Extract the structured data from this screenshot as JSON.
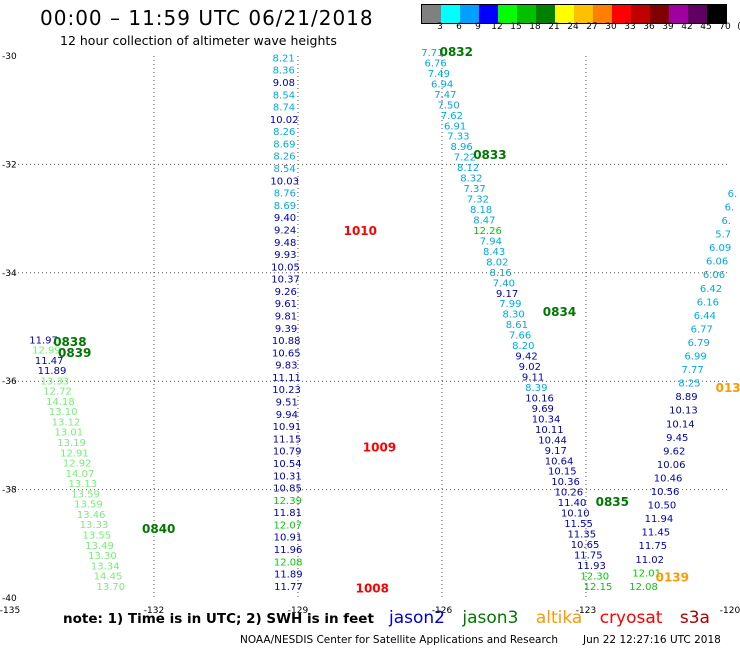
{
  "title": "00:00 – 11:59 UTC 06/21/2018",
  "subtitle": "12 hour collection of altimeter wave heights",
  "color_scale": {
    "labels": [
      "3",
      "6",
      "9",
      "12",
      "15",
      "18",
      "21",
      "24",
      "27",
      "30",
      "33",
      "36",
      "39",
      "42",
      "45",
      "70",
      "(ft)"
    ],
    "colors": [
      "#808080",
      "#00ffff",
      "#00a0ff",
      "#0000ff",
      "#00ff00",
      "#00c000",
      "#008000",
      "#ffff00",
      "#ffc000",
      "#ff8000",
      "#ff0000",
      "#c00000",
      "#800000",
      "#a000a0",
      "#600060",
      "#000000"
    ]
  },
  "map": {
    "lon_labels": [
      "-135",
      "-132",
      "-129",
      "-126",
      "-123",
      "-120"
    ],
    "lat_labels": [
      "-30",
      "-32",
      "-34",
      "-36",
      "-38",
      "-40"
    ],
    "lon_range": [
      -135,
      -120
    ],
    "lat_range": [
      -40,
      -30
    ]
  },
  "satellite_colors": {
    "j2": "#0000cc",
    "j3": "#007700",
    "altika": "#ff9900",
    "cryosat": "#ff0000",
    "s3a": "#aa0000"
  },
  "height_colors": {
    "c1": "#00aadd",
    "c2": "#0000aa",
    "c3": "#00cc00",
    "c4": "#77ee77"
  },
  "tracks": [
    {
      "name": "track-a",
      "lon_start": -129.3,
      "lat_start": -30.1,
      "lon_end": -129.2,
      "lat_end": -39.85,
      "values": [
        "8.21",
        "8.36",
        "9.08",
        "8.54",
        "8.74",
        "10.02",
        "8.26",
        "8.69",
        "8.26",
        "8.54",
        "10.03",
        "8.76",
        "8.69",
        "9.40",
        "9.24",
        "9.48",
        "9.93",
        "10.05",
        "10.37",
        "9.26",
        "9.61",
        "9.81",
        "9.39",
        "10.88",
        "10.65",
        "9.83",
        "11.11",
        "10.23",
        "9.51",
        "9.94",
        "10.91",
        "11.15",
        "10.79",
        "10.54",
        "10.31",
        "10.85",
        "12.39",
        "11.81",
        "12.07",
        "10.91",
        "11.96",
        "12.08",
        "11.89",
        "11.77"
      ],
      "colors": [
        "c1",
        "c1",
        "c2",
        "c1",
        "c1",
        "c2",
        "c1",
        "c1",
        "c1",
        "c1",
        "c2",
        "c1",
        "c1",
        "c2",
        "c2",
        "c2",
        "c2",
        "c2",
        "c2",
        "c2",
        "c2",
        "c2",
        "c2",
        "c2",
        "c2",
        "c2",
        "c2",
        "c2",
        "c2",
        "c2",
        "c2",
        "c2",
        "c2",
        "c2",
        "c2",
        "c2",
        "c3",
        "c2",
        "c3",
        "c2",
        "c2",
        "c3",
        "c2",
        "c2"
      ]
    },
    {
      "name": "track-b",
      "lon_start": -126.2,
      "lat_start": -30.0,
      "lon_end": -122.75,
      "lat_end": -39.85,
      "values": [
        "7.71",
        "6.76",
        "7.49",
        "6.94",
        "7.47",
        "7.50",
        "7.62",
        "6.91",
        "7.33",
        "8.96",
        "7.22",
        "8.12",
        "8.32",
        "7.37",
        "7.32",
        "8.18",
        "8.47",
        "12.26",
        "7.94",
        "8.43",
        "8.02",
        "8.16",
        "7.40",
        "9.17",
        "7.99",
        "8.30",
        "8.61",
        "7.66",
        "8.20",
        "9.42",
        "9.02",
        "9.11",
        "8.39",
        "10.16",
        "9.69",
        "10.34",
        "10.11",
        "10.44",
        "9.17",
        "10.64",
        "10.15",
        "10.36",
        "10.26",
        "11.40",
        "10.10",
        "11.55",
        "11.35",
        "10.65",
        "11.75",
        "11.93",
        "12.30",
        "12.15"
      ],
      "colors": [
        "c1",
        "c1",
        "c1",
        "c1",
        "c1",
        "c1",
        "c1",
        "c1",
        "c1",
        "c1",
        "c1",
        "c1",
        "c1",
        "c1",
        "c1",
        "c1",
        "c1",
        "c3",
        "c1",
        "c1",
        "c1",
        "c1",
        "c1",
        "c2",
        "c1",
        "c1",
        "c1",
        "c1",
        "c1",
        "c2",
        "c2",
        "c2",
        "c1",
        "c2",
        "c2",
        "c2",
        "c2",
        "c2",
        "c2",
        "c2",
        "c2",
        "c2",
        "c2",
        "c2",
        "c2",
        "c2",
        "c2",
        "c2",
        "c2",
        "c2",
        "c3",
        "c3"
      ]
    },
    {
      "name": "track-c",
      "lon_start": -119.95,
      "lat_start": -32.6,
      "lon_end": -121.8,
      "lat_end": -39.85,
      "values": [
        "6.",
        "6.",
        "6.",
        "5.7",
        "6.09",
        "6.06",
        "6.06",
        "6.42",
        "6.16",
        "6.44",
        "6.77",
        "6.79",
        "6.99",
        "7.77",
        "8.25",
        "8.89",
        "10.13",
        "10.14",
        "9.45",
        "9.62",
        "10.06",
        "10.46",
        "10.56",
        "10.50",
        "11.94",
        "11.45",
        "11.75",
        "11.02",
        "12.01",
        "12.08"
      ],
      "colors": [
        "c1",
        "c1",
        "c1",
        "c1",
        "c1",
        "c1",
        "c1",
        "c1",
        "c1",
        "c1",
        "c1",
        "c1",
        "c1",
        "c1",
        "c1",
        "c2",
        "c2",
        "c2",
        "c2",
        "c2",
        "c2",
        "c2",
        "c2",
        "c2",
        "c2",
        "c2",
        "c2",
        "c2",
        "c3",
        "c3"
      ]
    },
    {
      "name": "track-d",
      "lon_start": -134.3,
      "lat_start": -35.3,
      "lon_end": -132.9,
      "lat_end": -39.85,
      "values": [
        "11.97",
        "12.99",
        "11.47",
        "11.89",
        "13.33",
        "12.72",
        "14.18",
        "13.10",
        "13.12",
        "13.01",
        "13.19",
        "12.91",
        "12.92",
        "14.07",
        "13.13",
        "13.59",
        "13.59",
        "13.46",
        "13.33",
        "13.55",
        "13.49",
        "13.30",
        "13.34",
        "14.45",
        "13.70"
      ],
      "colors": [
        "c2",
        "c4",
        "c2",
        "c2",
        "c4",
        "c4",
        "c4",
        "c4",
        "c4",
        "c4",
        "c4",
        "c4",
        "c4",
        "c4",
        "c4",
        "c4",
        "c4",
        "c4",
        "c4",
        "c4",
        "c4",
        "c4",
        "c4",
        "c4",
        "c4"
      ]
    }
  ],
  "time_labels": [
    {
      "text": "0832",
      "sat": "j3",
      "lon": -126.05,
      "lat": -30.0
    },
    {
      "text": "0833",
      "sat": "j3",
      "lon": -125.35,
      "lat": -31.9
    },
    {
      "text": "0834",
      "sat": "j3",
      "lon": -123.9,
      "lat": -34.8
    },
    {
      "text": "0835",
      "sat": "j3",
      "lon": -122.8,
      "lat": -38.3
    },
    {
      "text": "0838",
      "sat": "j3",
      "lon": -134.1,
      "lat": -35.35
    },
    {
      "text": "0839",
      "sat": "j3",
      "lon": -134.0,
      "lat": -35.55
    },
    {
      "text": "0840",
      "sat": "j3",
      "lon": -132.25,
      "lat": -38.8
    },
    {
      "text": "1010",
      "sat": "cryosat",
      "lon": -128.05,
      "lat": -33.3
    },
    {
      "text": "1009",
      "sat": "cryosat",
      "lon": -127.65,
      "lat": -37.3
    },
    {
      "text": "1008",
      "sat": "cryosat",
      "lon": -127.8,
      "lat": -39.9
    },
    {
      "text": "0139",
      "sat": "altika",
      "lon": -121.55,
      "lat": -39.7
    },
    {
      "text": "013",
      "sat": "altika",
      "lon": -120.3,
      "lat": -36.2
    }
  ],
  "note": "note: 1) Time is in UTC; 2) SWH is in feet",
  "legend": [
    "jason2",
    "jason3",
    "altika",
    "cryosat",
    "s3a"
  ],
  "credit": "NOAA/NESDIS Center for Satellite Applications and Research",
  "timestamp": "Jun 22 12:27:16 UTC 2018"
}
